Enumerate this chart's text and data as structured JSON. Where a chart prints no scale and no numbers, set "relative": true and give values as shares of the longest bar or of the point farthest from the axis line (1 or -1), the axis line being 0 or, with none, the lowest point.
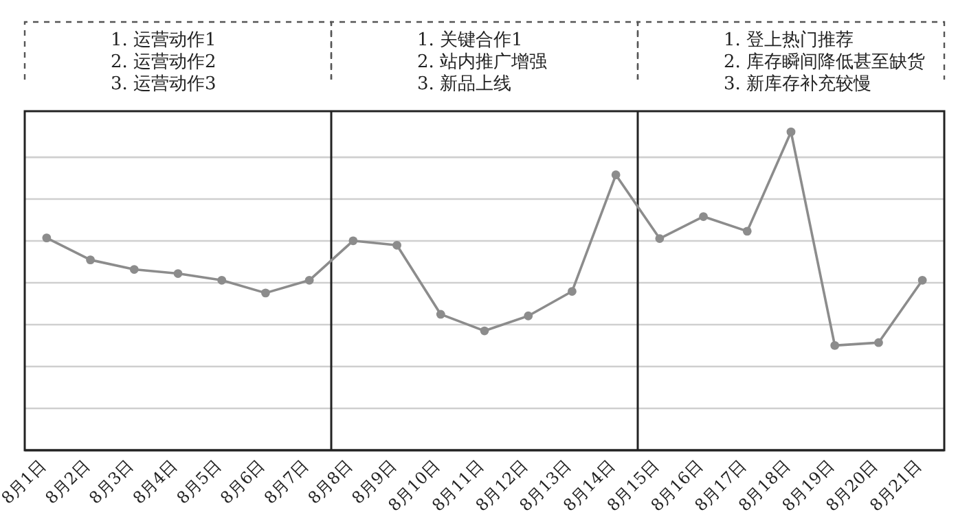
{
  "chart_data": {
    "type": "line",
    "relative": true,
    "grid": "y",
    "marker": "circle",
    "line_style": "solid",
    "categories": [
      "8月1日",
      "8月2日",
      "8月3日",
      "8月4日",
      "8月5日",
      "8月6日",
      "8月7日",
      "8月8日",
      "8月9日",
      "8月10日",
      "8月11日",
      "8月12日",
      "8月13日",
      "8月14日",
      "8月15日",
      "8月16日",
      "8月17日",
      "8月18日",
      "8月19日",
      "8月20日",
      "8月21日"
    ],
    "series": [
      {
        "color": "#8c8c8c",
        "values": [
          0.667,
          0.598,
          0.568,
          0.555,
          0.534,
          0.494,
          0.534,
          0.658,
          0.644,
          0.427,
          0.375,
          0.422,
          0.499,
          0.865,
          0.665,
          0.734,
          0.688,
          1,
          0.329,
          0.338,
          0.534
        ]
      }
    ],
    "annotations": [
      "1. 运营动作1\n2. 运营动作2\n3. 运营动作3",
      "1. 关键合作1\n2. 站内推广增强\n3. 新品上线",
      "1. 登上热门推荐\n2. 库存瞬间降低甚至缺货\n3. 新库存补充较慢"
    ]
  }
}
